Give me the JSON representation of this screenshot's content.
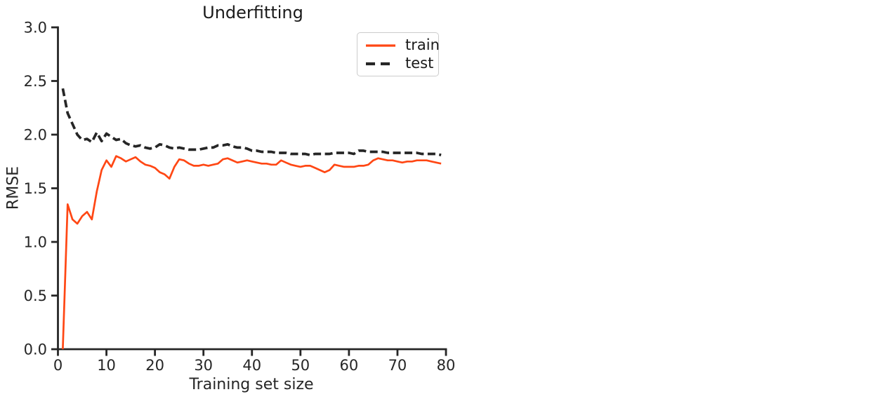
{
  "figure": {
    "background": "#ffffff",
    "axis_color": "#262626",
    "text_color": "#1a1a1a"
  },
  "chart_data": {
    "type": "line",
    "title": "Underfitting",
    "xlabel": "Training set size",
    "ylabel": "RMSE",
    "xlim": [
      0,
      80
    ],
    "ylim": [
      0.0,
      3.0
    ],
    "grid": false,
    "xticks": [
      "0",
      "10",
      "20",
      "30",
      "40",
      "50",
      "60",
      "70",
      "80"
    ],
    "xtick_values": [
      0,
      10,
      20,
      30,
      40,
      50,
      60,
      70,
      80
    ],
    "yticks": [
      "0.0",
      "0.5",
      "1.0",
      "1.5",
      "2.0",
      "2.5",
      "3.0"
    ],
    "ytick_values": [
      0.0,
      0.5,
      1.0,
      1.5,
      2.0,
      2.5,
      3.0
    ],
    "legend": {
      "position": "upper center",
      "entries": [
        "train",
        "test"
      ]
    },
    "x": [
      1,
      2,
      3,
      4,
      5,
      6,
      7,
      8,
      9,
      10,
      11,
      12,
      13,
      14,
      15,
      16,
      17,
      18,
      19,
      20,
      21,
      22,
      23,
      24,
      25,
      26,
      27,
      28,
      29,
      30,
      31,
      32,
      33,
      34,
      35,
      36,
      37,
      38,
      39,
      40,
      41,
      42,
      43,
      44,
      45,
      46,
      47,
      48,
      49,
      50,
      51,
      52,
      53,
      54,
      55,
      56,
      57,
      58,
      59,
      60,
      61,
      62,
      63,
      64,
      65,
      66,
      67,
      68,
      69,
      70,
      71,
      72,
      73,
      74,
      75,
      76,
      77,
      78,
      79
    ],
    "series": [
      {
        "name": "train",
        "color": "#ff4714",
        "style": "solid",
        "line_width": 2.7,
        "values": [
          0.0,
          1.35,
          1.21,
          1.17,
          1.24,
          1.28,
          1.21,
          1.47,
          1.67,
          1.76,
          1.7,
          1.8,
          1.78,
          1.75,
          1.77,
          1.79,
          1.75,
          1.72,
          1.71,
          1.69,
          1.65,
          1.63,
          1.59,
          1.7,
          1.77,
          1.76,
          1.73,
          1.71,
          1.71,
          1.72,
          1.71,
          1.72,
          1.73,
          1.77,
          1.78,
          1.76,
          1.74,
          1.75,
          1.76,
          1.75,
          1.74,
          1.73,
          1.73,
          1.72,
          1.72,
          1.76,
          1.74,
          1.72,
          1.71,
          1.7,
          1.71,
          1.71,
          1.69,
          1.67,
          1.65,
          1.67,
          1.72,
          1.71,
          1.7,
          1.7,
          1.7,
          1.71,
          1.71,
          1.72,
          1.76,
          1.78,
          1.77,
          1.76,
          1.76,
          1.75,
          1.74,
          1.75,
          1.75,
          1.76,
          1.76,
          1.76,
          1.75,
          1.74,
          1.73
        ]
      },
      {
        "name": "test",
        "color": "#262626",
        "style": "dashed",
        "line_width": 3.7,
        "dash": [
          11,
          5.5
        ],
        "legend_dash": [
          13,
          8
        ],
        "values": [
          2.43,
          2.2,
          2.1,
          2.0,
          1.95,
          1.96,
          1.93,
          2.02,
          1.94,
          2.01,
          1.98,
          1.95,
          1.96,
          1.92,
          1.9,
          1.89,
          1.9,
          1.88,
          1.87,
          1.88,
          1.91,
          1.9,
          1.88,
          1.87,
          1.88,
          1.87,
          1.86,
          1.86,
          1.86,
          1.87,
          1.88,
          1.88,
          1.9,
          1.9,
          1.91,
          1.89,
          1.88,
          1.88,
          1.87,
          1.85,
          1.85,
          1.84,
          1.84,
          1.84,
          1.83,
          1.83,
          1.83,
          1.82,
          1.82,
          1.82,
          1.82,
          1.81,
          1.82,
          1.82,
          1.82,
          1.82,
          1.83,
          1.83,
          1.83,
          1.83,
          1.82,
          1.85,
          1.85,
          1.84,
          1.84,
          1.84,
          1.84,
          1.83,
          1.83,
          1.83,
          1.83,
          1.83,
          1.83,
          1.83,
          1.82,
          1.82,
          1.82,
          1.82,
          1.81
        ]
      }
    ]
  }
}
